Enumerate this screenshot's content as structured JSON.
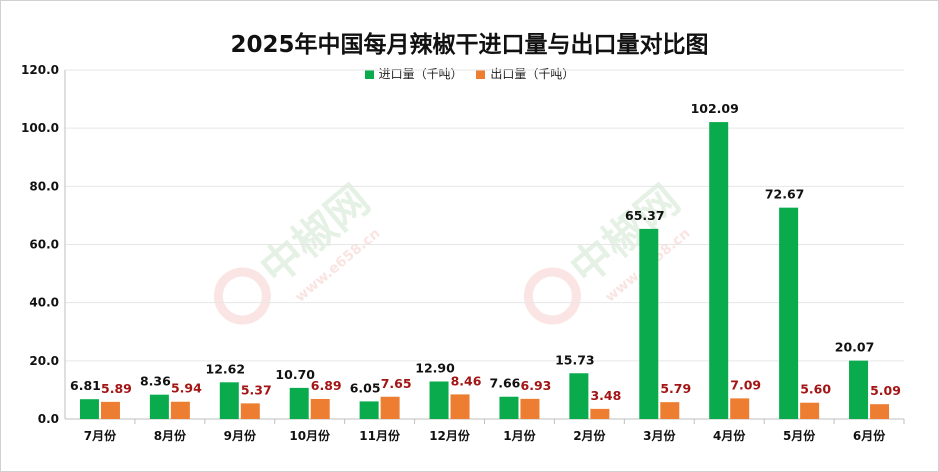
{
  "chart_data": {
    "type": "bar",
    "title": "2025年中国每月辣椒干进口量与出口量对比图",
    "categories": [
      "7月份",
      "8月份",
      "9月份",
      "10月份",
      "11月份",
      "12月份",
      "1月份",
      "2月份",
      "3月份",
      "4月份",
      "5月份",
      "6月份"
    ],
    "series": [
      {
        "name": "进口量（千吨）",
        "color": "#0aab4c",
        "label_color": "#111111",
        "values": [
          6.81,
          8.36,
          12.62,
          10.7,
          6.05,
          12.9,
          7.66,
          15.73,
          65.37,
          102.09,
          72.67,
          20.07
        ],
        "labels": [
          "6.81",
          "8.36",
          "12.62",
          "10.70",
          "6.05",
          "12.90",
          "7.66",
          "15.73",
          "65.37",
          "102.09",
          "72.67",
          "20.07"
        ]
      },
      {
        "name": "出口量（千吨）",
        "color": "#ed7d31",
        "label_color": "#a31515",
        "values": [
          5.89,
          5.94,
          5.37,
          6.89,
          7.65,
          8.46,
          6.93,
          3.48,
          5.79,
          7.09,
          5.6,
          5.09
        ],
        "labels": [
          "5.89",
          "5.94",
          "5.37",
          "6.89",
          "7.65",
          "8.46",
          "6.93",
          "3.48",
          "5.79",
          "7.09",
          "5.60",
          "5.09"
        ]
      }
    ],
    "ylim": [
      0,
      120
    ],
    "yticks": [
      "0.0",
      "20.0",
      "40.0",
      "60.0",
      "80.0",
      "100.0",
      "120.0"
    ],
    "grid": true,
    "legend": "top-center",
    "watermark": {
      "text": "中椒网",
      "url": "www.e658.cn"
    }
  }
}
